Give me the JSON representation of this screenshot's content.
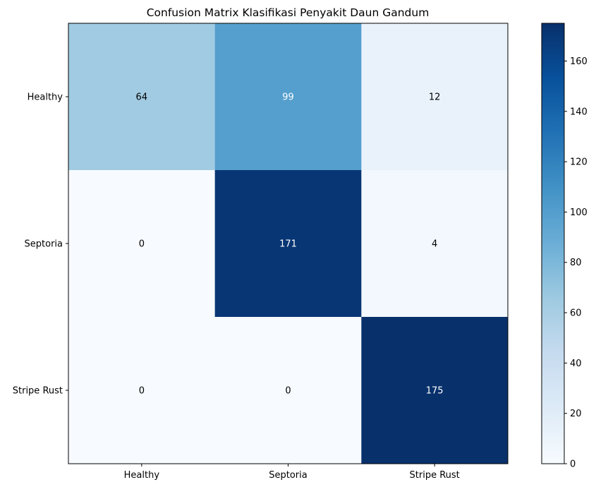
{
  "chart_data": {
    "type": "heatmap",
    "title": "Confusion Matrix Klasifikasi Penyakit Daun Gandum",
    "row_labels": [
      "Healthy",
      "Septoria",
      "Stripe Rust"
    ],
    "col_labels": [
      "Healthy",
      "Septoria",
      "Stripe Rust"
    ],
    "values": [
      [
        64,
        99,
        12
      ],
      [
        0,
        171,
        4
      ],
      [
        0,
        0,
        175
      ]
    ],
    "colormap": "Blues",
    "colorbar": {
      "range": [
        0,
        175
      ],
      "ticks": [
        0,
        20,
        40,
        60,
        80,
        100,
        120,
        140,
        160
      ]
    },
    "text_colors": {
      "light": "#ffffff",
      "dark": "#000000"
    }
  }
}
